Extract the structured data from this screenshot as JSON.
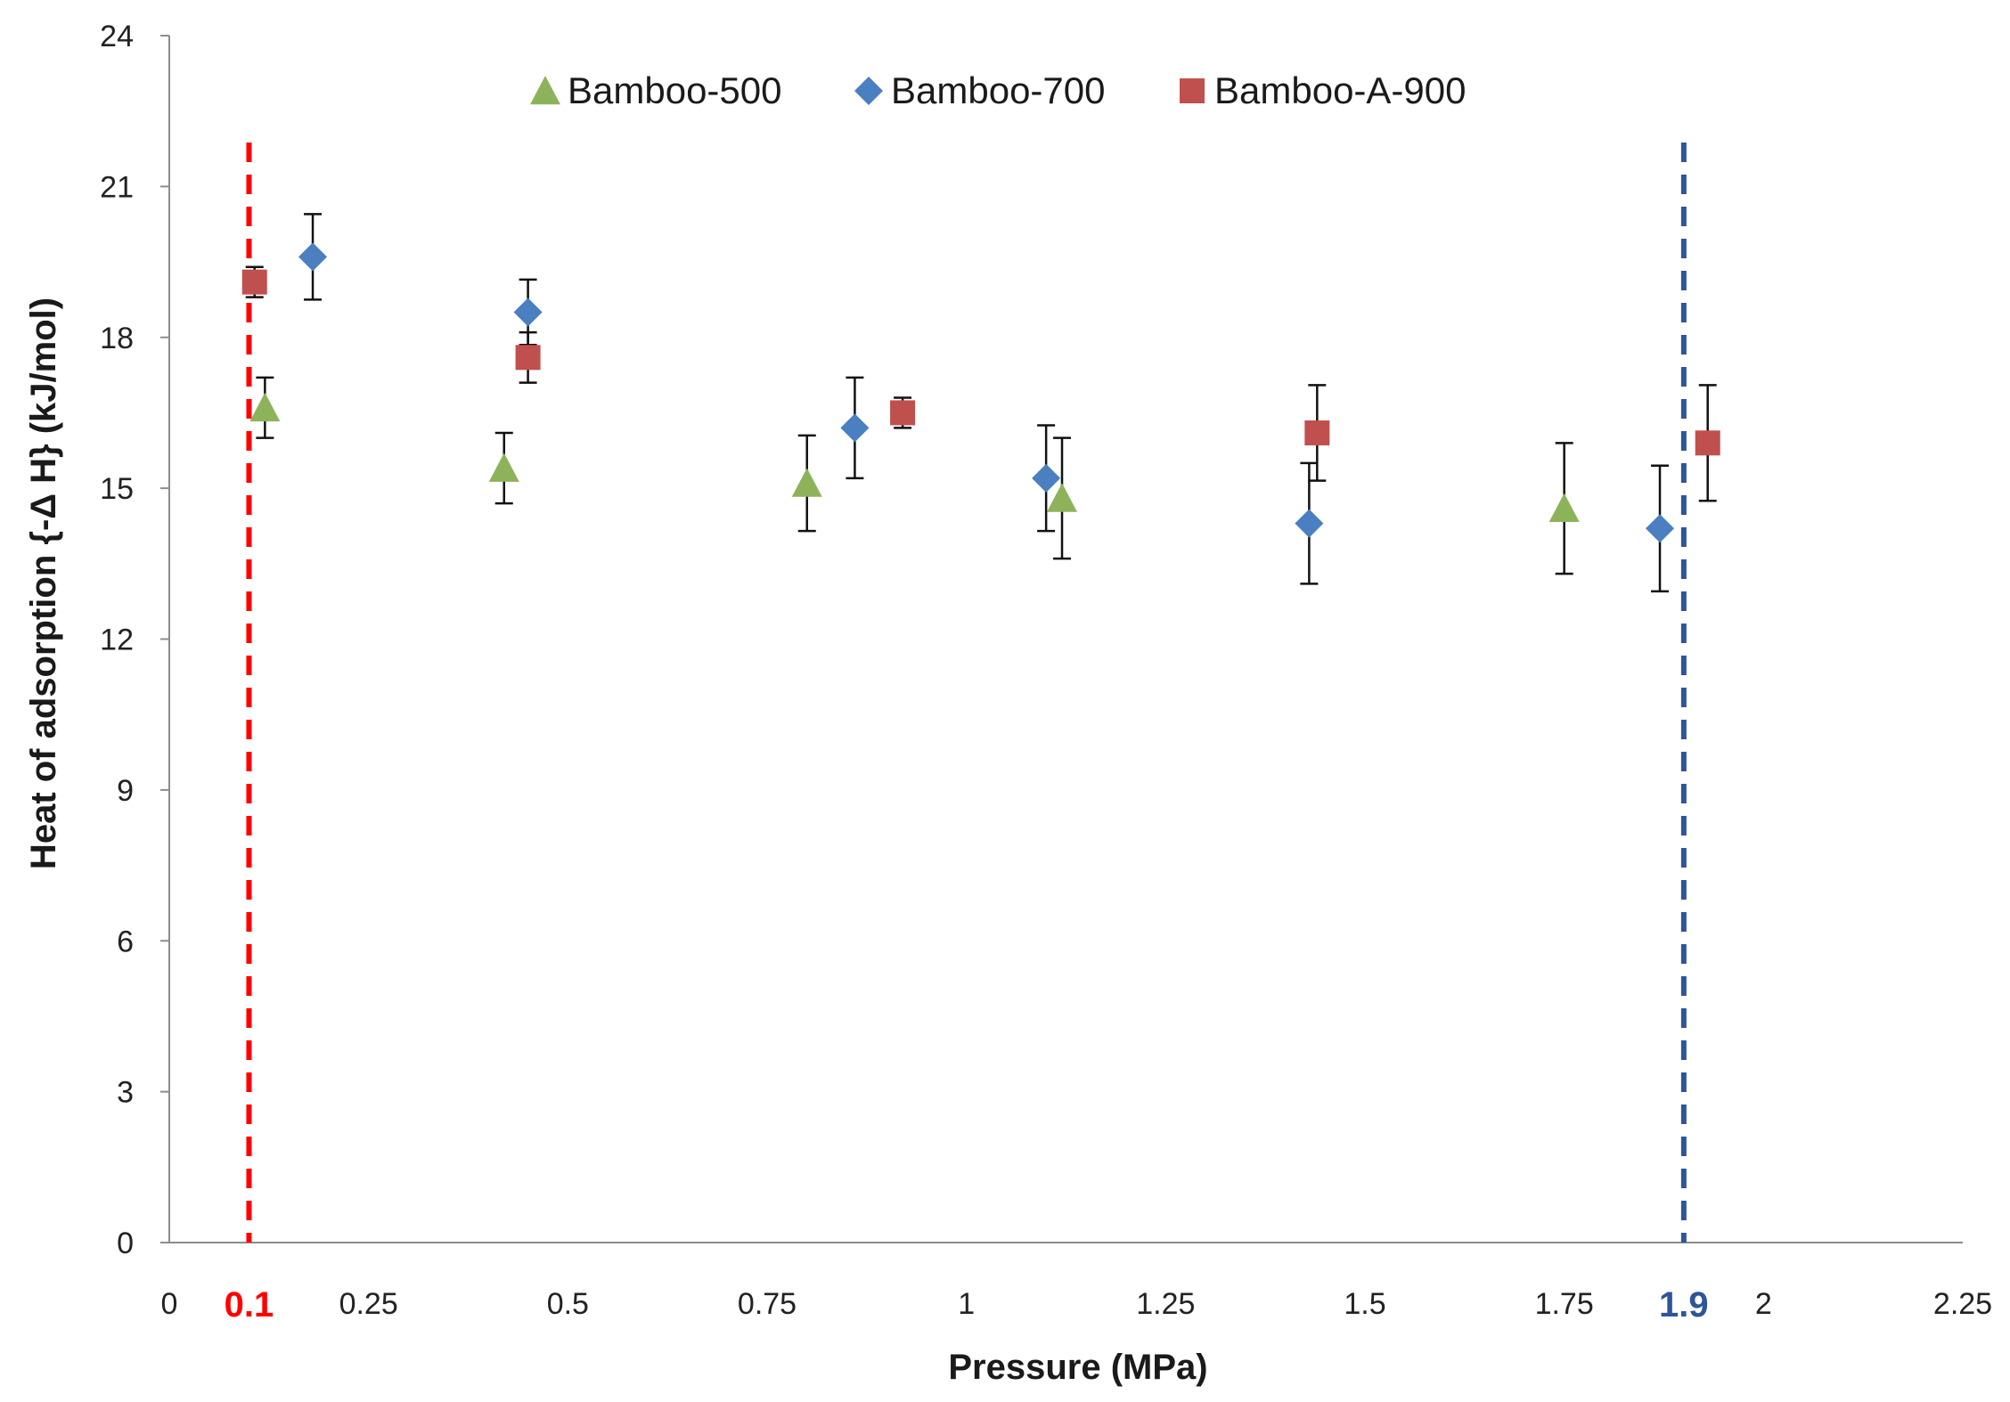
{
  "chart_data": {
    "type": "scatter",
    "xlabel": "Pressure (MPa)",
    "ylabel": "Heat of adsorption {-Δ H} (kJ/mol)",
    "xlim": [
      0,
      2.25
    ],
    "ylim": [
      0,
      24
    ],
    "xticks": [
      "0",
      "0.25",
      "0.5",
      "0.75",
      "1",
      "1.25",
      "1.5",
      "1.75",
      "2",
      "2.25"
    ],
    "yticks": [
      "0",
      "3",
      "6",
      "9",
      "12",
      "15",
      "18",
      "21",
      "24"
    ],
    "legend_position": "top-center",
    "grid": false,
    "series": [
      {
        "name": "Bamboo-500",
        "marker": "triangle",
        "color": "#8db35a",
        "points": [
          {
            "x": 0.12,
            "y": 16.6,
            "err": 0.6
          },
          {
            "x": 0.42,
            "y": 15.4,
            "err": 0.7
          },
          {
            "x": 0.8,
            "y": 15.1,
            "err": 0.95
          },
          {
            "x": 1.12,
            "y": 14.8,
            "err": 1.2
          },
          {
            "x": 1.75,
            "y": 14.6,
            "err": 1.3
          }
        ]
      },
      {
        "name": "Bamboo-700",
        "marker": "diamond",
        "color": "#4a7fc1",
        "points": [
          {
            "x": 0.18,
            "y": 19.6,
            "err": 0.85
          },
          {
            "x": 0.45,
            "y": 18.5,
            "err": 0.65
          },
          {
            "x": 0.86,
            "y": 16.2,
            "err": 1.0
          },
          {
            "x": 1.1,
            "y": 15.2,
            "err": 1.05
          },
          {
            "x": 1.43,
            "y": 14.3,
            "err": 1.2
          },
          {
            "x": 1.87,
            "y": 14.2,
            "err": 1.25
          }
        ]
      },
      {
        "name": "Bamboo-A-900",
        "marker": "square",
        "color": "#c0504d",
        "points": [
          {
            "x": 0.107,
            "y": 19.1,
            "err": 0.3
          },
          {
            "x": 0.45,
            "y": 17.6,
            "err": 0.5
          },
          {
            "x": 0.92,
            "y": 16.5,
            "err": 0.3
          },
          {
            "x": 1.44,
            "y": 16.1,
            "err": 0.95
          },
          {
            "x": 1.93,
            "y": 15.9,
            "err": 1.15
          }
        ]
      }
    ],
    "reference_lines": [
      {
        "x": 0.1,
        "label": "0.1",
        "color": "#ff0000"
      },
      {
        "x": 1.9,
        "label": "1.9",
        "color": "#2e5597"
      }
    ]
  }
}
